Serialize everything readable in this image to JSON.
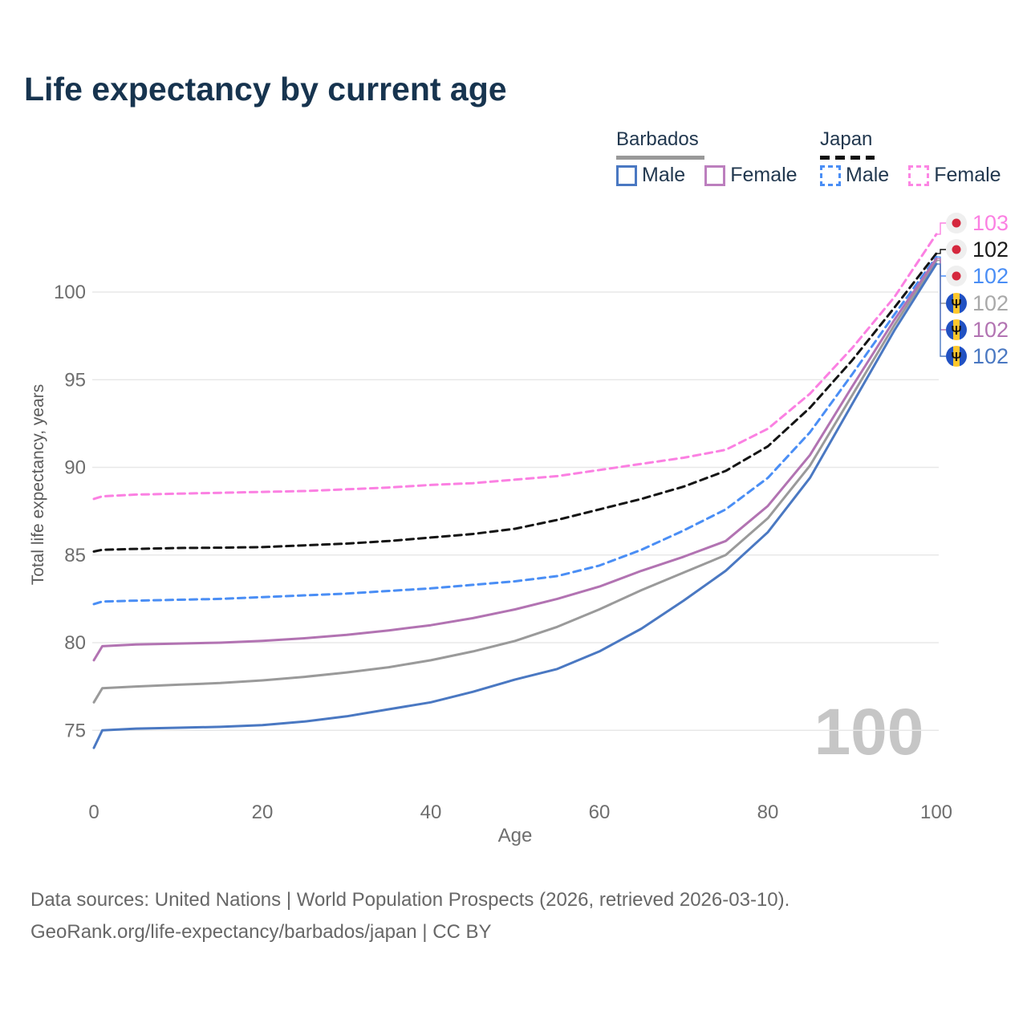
{
  "title": "Life expectancy by current age",
  "legend": {
    "groups": [
      {
        "label": "Barbados",
        "line_style": "solid",
        "underline_color": "#999999",
        "items": [
          {
            "label": "Male",
            "color": "#4a78c2"
          },
          {
            "label": "Female",
            "color": "#bc7fbe"
          }
        ]
      },
      {
        "label": "Japan",
        "line_style": "dashed",
        "underline_color": "#111111",
        "items": [
          {
            "label": "Male",
            "color": "#4a8ef5"
          },
          {
            "label": "Female",
            "color": "#fc86e4"
          }
        ]
      }
    ]
  },
  "axes": {
    "x_label": "Age",
    "y_label": "Total life expectancy, years"
  },
  "watermark": "100",
  "footer": {
    "line1": "Data sources: United Nations | World Population Prospects (2026, retrieved 2026-03-10).",
    "line2": "GeoRank.org/life-expectancy/barbados/japan | CC BY"
  },
  "chart_data": {
    "type": "line",
    "title": "Life expectancy by current age",
    "xlabel": "Age",
    "ylabel": "Total life expectancy, years",
    "x_ticks": [
      0,
      20,
      40,
      60,
      80,
      100
    ],
    "y_ticks": [
      75,
      80,
      85,
      90,
      95,
      100
    ],
    "xlim": [
      0,
      100
    ],
    "ylim": [
      73,
      104.5
    ],
    "grid": "horizontal-only",
    "legend_position": "top-right",
    "ages": [
      0,
      1,
      5,
      10,
      15,
      20,
      25,
      30,
      35,
      40,
      45,
      50,
      55,
      60,
      65,
      70,
      75,
      80,
      85,
      90,
      95,
      100
    ],
    "series": [
      {
        "name": "Japan Female",
        "country": "Japan",
        "sex": "female",
        "line_style": "dashed",
        "color": "#fb80e2",
        "label_color": "#fb80e2",
        "flag": "japan",
        "end_label": "103",
        "label_row_y": 278,
        "values": [
          88.2,
          88.35,
          88.45,
          88.5,
          88.55,
          88.6,
          88.65,
          88.75,
          88.85,
          89.0,
          89.1,
          89.3,
          89.5,
          89.85,
          90.2,
          90.55,
          91.0,
          92.2,
          94.2,
          96.8,
          99.7,
          103.3
        ]
      },
      {
        "name": "Japan",
        "country": "Japan",
        "sex": "both",
        "line_style": "dashed",
        "color": "#141414",
        "label_color": "#1a1a1a",
        "flag": "japan",
        "end_label": "102",
        "label_row_y": 311,
        "values": [
          85.2,
          85.3,
          85.35,
          85.4,
          85.42,
          85.45,
          85.55,
          85.65,
          85.8,
          86.0,
          86.2,
          86.5,
          87.0,
          87.6,
          88.2,
          88.9,
          89.8,
          91.2,
          93.4,
          96.1,
          99.1,
          102.2
        ]
      },
      {
        "name": "Japan Male",
        "country": "Japan",
        "sex": "male",
        "line_style": "dashed",
        "color": "#4a8ef5",
        "label_color": "#4a8ef5",
        "flag": "japan",
        "end_label": "102",
        "label_row_y": 344,
        "values": [
          82.2,
          82.35,
          82.4,
          82.45,
          82.5,
          82.6,
          82.7,
          82.8,
          82.95,
          83.1,
          83.3,
          83.5,
          83.8,
          84.4,
          85.3,
          86.4,
          87.6,
          89.4,
          92.0,
          95.3,
          98.7,
          102.0
        ]
      },
      {
        "name": "Barbados",
        "country": "Barbados",
        "sex": "both",
        "line_style": "solid",
        "color": "#9a9a9a",
        "label_color": "#a9a9a9",
        "flag": "barbados",
        "end_label": "102",
        "label_row_y": 378,
        "values": [
          76.6,
          77.4,
          77.5,
          77.6,
          77.7,
          77.85,
          78.05,
          78.3,
          78.6,
          79.0,
          79.5,
          80.1,
          80.9,
          81.9,
          83.0,
          84.0,
          85.0,
          87.1,
          90.1,
          94.1,
          98.1,
          101.8
        ]
      },
      {
        "name": "Barbados Female",
        "country": "Barbados",
        "sex": "female",
        "line_style": "solid",
        "color": "#b273b2",
        "label_color": "#b273b2",
        "flag": "barbados",
        "end_label": "102",
        "label_row_y": 411,
        "values": [
          79.0,
          79.8,
          79.9,
          79.95,
          80.0,
          80.1,
          80.25,
          80.45,
          80.7,
          81.0,
          81.4,
          81.9,
          82.5,
          83.2,
          84.1,
          84.9,
          85.8,
          87.8,
          90.7,
          94.6,
          98.4,
          101.9
        ]
      },
      {
        "name": "Barbados Male",
        "country": "Barbados",
        "sex": "male",
        "line_style": "solid",
        "color": "#4a78c2",
        "label_color": "#4a78c2",
        "flag": "barbados",
        "end_label": "102",
        "label_row_y": 444,
        "values": [
          74.0,
          75.0,
          75.1,
          75.15,
          75.2,
          75.3,
          75.5,
          75.8,
          76.2,
          76.6,
          77.2,
          77.9,
          78.5,
          79.5,
          80.8,
          82.4,
          84.1,
          86.3,
          89.4,
          93.6,
          97.8,
          101.6
        ]
      }
    ],
    "flag_colors": {
      "japan_bg": "#efefef",
      "japan_sun": "#d5283e",
      "barbados_blue": "#2151c2",
      "barbados_yellow": "#ffc72c",
      "trident": "#111111"
    },
    "grid_color": "#e8e8e8",
    "tick_color": "#6e6e6e",
    "watermark_color": "#c6c6c6"
  }
}
